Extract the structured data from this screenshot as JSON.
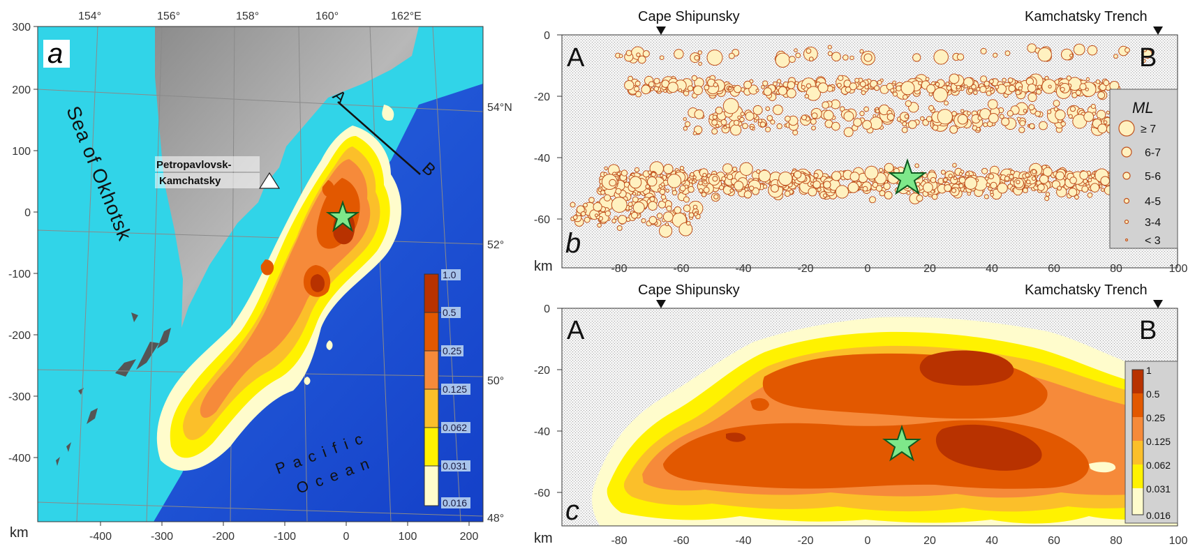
{
  "panel_a": {
    "letter": "a",
    "top_longitudes": [
      "154°",
      "156°",
      "158°",
      "160°",
      "162°E"
    ],
    "right_latitudes": [
      "54°N",
      "52°",
      "50°",
      "48°"
    ],
    "left_km_ticks": [
      "300",
      "200",
      "100",
      "0",
      "-100",
      "-200",
      "-300",
      "-400"
    ],
    "bottom_km_ticks": [
      "-400",
      "-300",
      "-200",
      "-100",
      "0",
      "100",
      "200"
    ],
    "km_label": "km",
    "sea_label": "Sea of Okhotsk",
    "ocean_label_1": "Pacific",
    "ocean_label_2": "Ocean",
    "city_label_1": "Petropavlovsk-",
    "city_label_2": "Kamchatsky",
    "profile_start": "A",
    "profile_end": "B",
    "legend": [
      "1.0",
      "0.5",
      "0.25",
      "0.125",
      "0.062",
      "0.031",
      "0.016"
    ]
  },
  "panel_b": {
    "letter": "b",
    "label_A": "A",
    "label_B": "B",
    "cape_label": "Cape Shipunsky",
    "trench_label": "Kamchatsky Trench",
    "y_ticks": [
      "0",
      "-20",
      "-40",
      "-60"
    ],
    "x_ticks": [
      "-80",
      "-60",
      "-40",
      "-20",
      "0",
      "20",
      "40",
      "60",
      "80",
      "100"
    ],
    "km_label": "km",
    "legend_title": "ML",
    "legend_items": [
      "≥ 7",
      "6-7",
      "5-6",
      "4-5",
      "3-4",
      "< 3"
    ]
  },
  "panel_c": {
    "letter": "c",
    "label_A": "A",
    "label_B": "B",
    "cape_label": "Cape Shipunsky",
    "trench_label": "Kamchatsky Trench",
    "y_ticks": [
      "0",
      "-20",
      "-40",
      "-60"
    ],
    "x_ticks": [
      "-80",
      "-60",
      "-40",
      "-20",
      "0",
      "20",
      "40",
      "60",
      "80",
      "100"
    ],
    "km_label": "km",
    "legend": [
      "1",
      "0.5",
      "0.25",
      "0.125",
      "0.062",
      "0.031",
      "0.016"
    ]
  },
  "colors": {
    "ocean_shallow": "#2fd6ea",
    "ocean_deep": "#1e56d8",
    "land": "#9a9a9a",
    "density": [
      "#b83200",
      "#e25800",
      "#f68a3a",
      "#fbbf2a",
      "#fff200",
      "#ffff9a",
      "#fffccc"
    ],
    "star": "#7ee88a",
    "event_fill": "#fff1c0",
    "event_stroke": "#c0501c"
  }
}
